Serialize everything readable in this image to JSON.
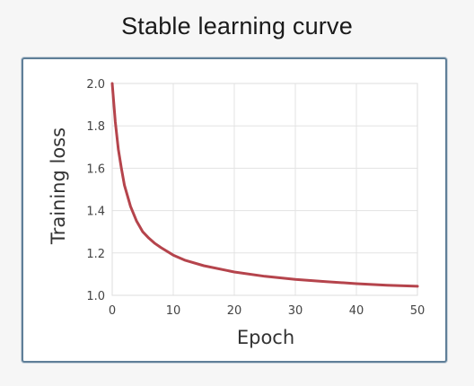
{
  "chart_data": {
    "type": "line",
    "title": "Stable learning curve",
    "xlabel": "Epoch",
    "ylabel": "Training loss",
    "xlim": [
      0,
      50
    ],
    "ylim": [
      1.0,
      2.0
    ],
    "xticks": [
      0,
      10,
      20,
      30,
      40,
      50
    ],
    "yticks": [
      1.0,
      1.2,
      1.4,
      1.6,
      1.8,
      2.0
    ],
    "xtick_labels": [
      "0",
      "10",
      "20",
      "30",
      "40",
      "50"
    ],
    "ytick_labels": [
      "1.0",
      "1.2",
      "1.4",
      "1.6",
      "1.8",
      "2.0"
    ],
    "grid": true,
    "series": [
      {
        "color": "#b5444c",
        "x": [
          0,
          0.5,
          1,
          1.5,
          2,
          3,
          4,
          5,
          6,
          7,
          8,
          10,
          12,
          15,
          20,
          25,
          30,
          35,
          40,
          45,
          50
        ],
        "y": [
          2.0,
          1.82,
          1.69,
          1.6,
          1.52,
          1.42,
          1.35,
          1.3,
          1.27,
          1.245,
          1.225,
          1.19,
          1.165,
          1.14,
          1.11,
          1.09,
          1.075,
          1.065,
          1.055,
          1.048,
          1.043
        ]
      }
    ]
  }
}
